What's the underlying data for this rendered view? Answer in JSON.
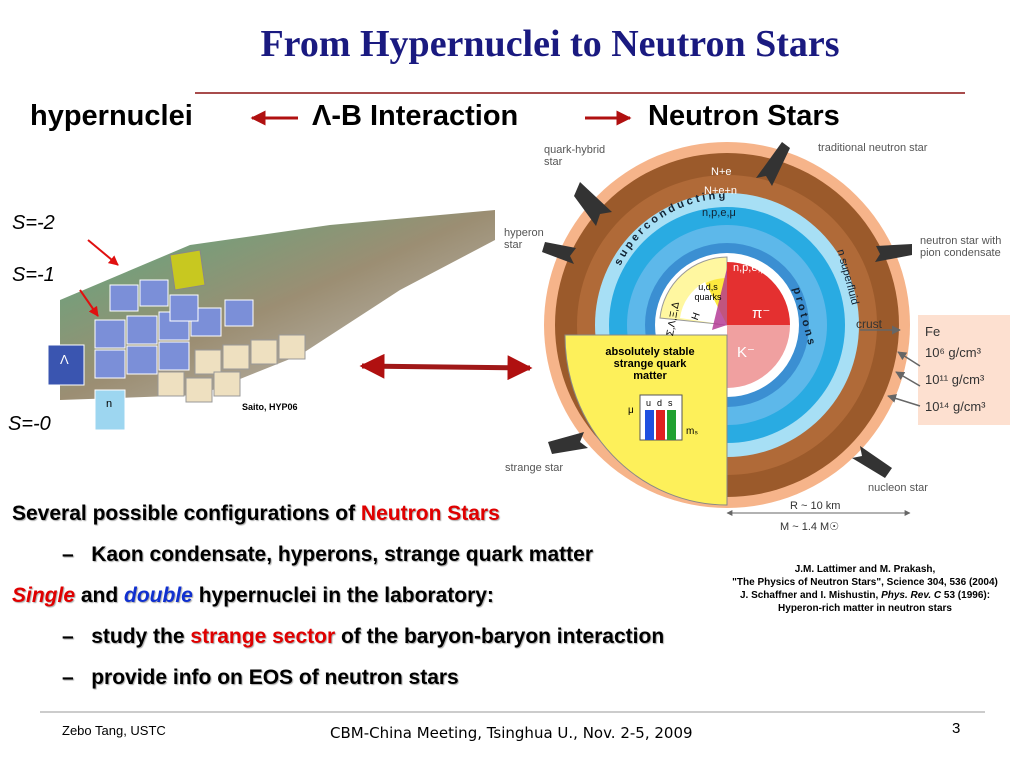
{
  "title": "From Hypernuclei to Neutron Stars",
  "subtitle": {
    "left": "hypernuclei",
    "center": "Λ-B Interaction",
    "right": "Neutron Stars"
  },
  "nuclear_chart": {
    "labels": [
      "S=-2",
      "S=-1",
      "S=-0"
    ],
    "credit": "Saito, HYP06",
    "cells": [
      "Λ",
      "n"
    ]
  },
  "neutron_star": {
    "star_types": [
      "quark-hybrid star",
      "traditional neutron star",
      "hyperon star",
      "neutron star with pion condensate",
      "strange star",
      "nucleon star"
    ],
    "layers": [
      "N+e",
      "N+e+n",
      "n,p,e,μ",
      "superconducting",
      "protons",
      "n superfluid",
      "n,p,e,μ"
    ],
    "core": {
      "quarks": "u,d,s quarks",
      "hyperons": "Σ,Λ,Ξ,Δ",
      "dibaryon": "H",
      "pion": "π⁻",
      "kaon": "K⁻"
    },
    "strange_matter": {
      "lines": [
        "absolutely stable",
        "strange quark",
        "matter"
      ],
      "quarks": [
        "u",
        "d",
        "s"
      ],
      "lepton": "μ",
      "mass": "mₛ"
    },
    "crust": {
      "label": "crust",
      "composition": "Fe",
      "densities": [
        "10⁶ g/cm³",
        "10¹¹ g/cm³",
        "10¹⁴ g/cm³"
      ]
    },
    "radius": "R ~ 10 km",
    "mass": "M ~ 1.4 M☉"
  },
  "bullet_marker": "–",
  "bullets": [
    [
      "Several possible configurations of ",
      "Neutron Stars"
    ],
    [
      "Kaon condensate, hyperons, strange quark matter"
    ],
    [
      "Single",
      " and ",
      "double",
      " hypernuclei in the laboratory:"
    ],
    [
      "study the ",
      "strange sector",
      " of the baryon-baryon interaction"
    ],
    [
      "provide info on EOS of neutron stars"
    ]
  ],
  "references": [
    [
      "J.M. Lattimer and M. Prakash,"
    ],
    [
      "\"The Physics of Neutron Stars\", Science 304, 536 (2004)"
    ],
    [
      "J. Schaffner and I. Mishustin, ",
      "Phys. Rev. C",
      " 53 (1996):"
    ],
    [
      "Hyperon-rich matter in neutron stars"
    ]
  ],
  "footer": {
    "author": "Zebo Tang, USTC",
    "event": "CBM-China Meeting, Tsinghua U., Nov. 2-5, 2009",
    "page": "3"
  }
}
